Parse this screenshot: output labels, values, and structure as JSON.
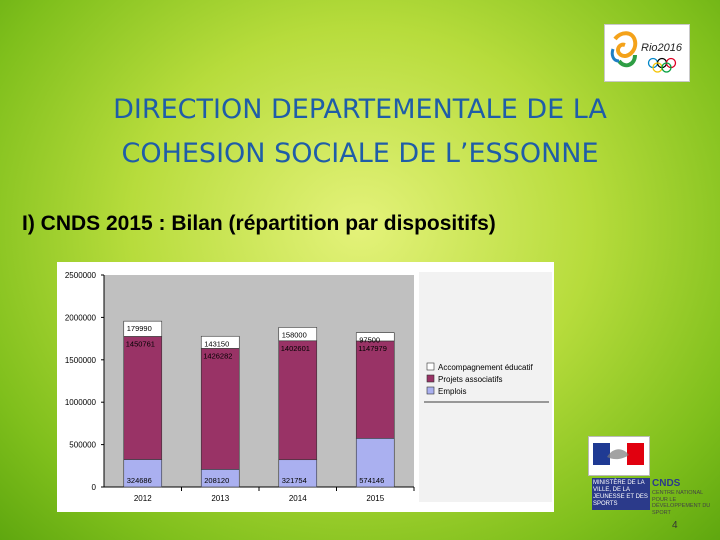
{
  "slide": {
    "title_line1": "DIRECTION DEPARTEMENTALE DE LA",
    "title_line2": "COHESION SOCIALE DE L’ESSONNE",
    "subtitle": "I) CNDS 2015 : Bilan (répartition par dispositifs)",
    "page_number": "4",
    "logo_text": "Rio2016"
  },
  "footer": {
    "ministry_text": "MINISTÈRE DE LA VILLE, DE LA JEUNESSE ET DES SPORTS",
    "cnds_title": "CNDS",
    "cnds_subtitle": "CENTRE NATIONAL POUR LE DÉVELOPPEMENT DU SPORT"
  },
  "chart_data": {
    "type": "bar",
    "stacked": true,
    "categories": [
      "2012",
      "2013",
      "2014",
      "2015"
    ],
    "series": [
      {
        "name": "Emplois",
        "color": "#aab0f0",
        "values": [
          324686,
          208120,
          321754,
          574146
        ]
      },
      {
        "name": "Projets associatifs",
        "color": "#993366",
        "values": [
          1450761,
          1426282,
          1402601,
          1147979
        ]
      },
      {
        "name": "Accompagnement éducatif",
        "color": "#ffffff",
        "values": [
          179990,
          143150,
          158000,
          97500
        ]
      }
    ],
    "y_ticks": [
      "0",
      "500000",
      "1000000",
      "1500000",
      "2000000",
      "2500000"
    ],
    "ylim": [
      0,
      2500000
    ],
    "legend_position": "right",
    "grid": false,
    "plot_background": "#c0c0c0"
  }
}
